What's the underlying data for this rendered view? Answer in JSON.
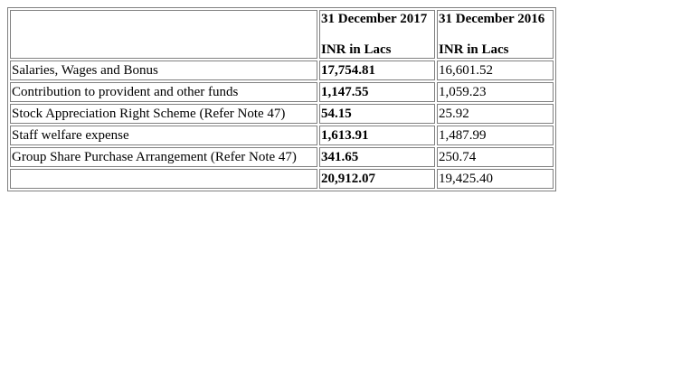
{
  "table": {
    "header": {
      "col_label": "",
      "col1_date": "31 December 2017",
      "col1_unit": "INR in Lacs",
      "col2_date": "31 December 2016",
      "col2_unit": "INR in Lacs"
    },
    "rows": [
      {
        "label": "Salaries, Wages and Bonus",
        "current": "17,754.81",
        "previous": "16,601.52"
      },
      {
        "label": "Contribution to provident and other funds",
        "current": "1,147.55",
        "previous": "1,059.23"
      },
      {
        "label": "Stock Appreciation Right Scheme (Refer Note 47)",
        "current": "54.15",
        "previous": "25.92"
      },
      {
        "label": "Staff welfare expense",
        "current": "1,613.91",
        "previous": "1,487.99"
      },
      {
        "label": "Group Share Purchase Arrangement (Refer Note 47)",
        "current": "341.65",
        "previous": "250.74"
      }
    ],
    "total": {
      "label": "",
      "current": "20,912.07",
      "previous": "19,425.40"
    }
  }
}
